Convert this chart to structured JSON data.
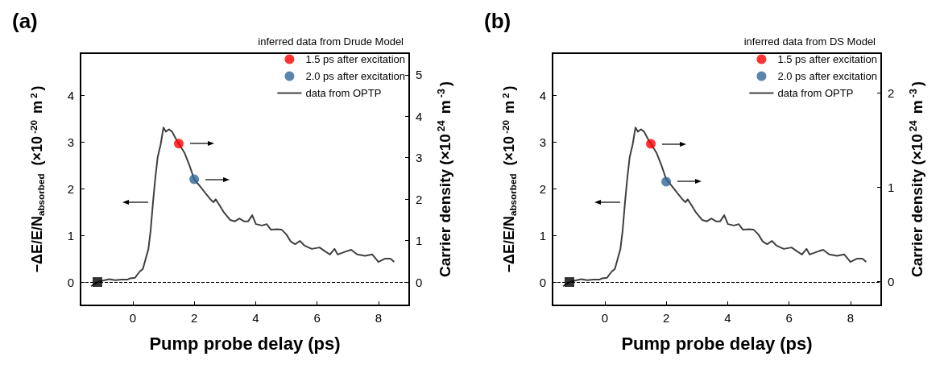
{
  "chart_data": [
    {
      "type": "line",
      "title": "(a)",
      "xlabel": "Pump probe delay (ps)",
      "ylabel": "−ΔE/E/N$_{absorbed}$  (×10$^{-20}$ m$^{2}$)",
      "y2label": "Carrier density (×10$^{24}$ m$^{-3}$)",
      "legend_title": "inferred data from Drude Model",
      "legend": "top right",
      "grid": false,
      "xlim": [
        -1.7,
        9
      ],
      "xticks": [
        0,
        2,
        4,
        6,
        8
      ],
      "ylim": [
        -0.5,
        4.9
      ],
      "yticks": [
        0,
        1,
        2,
        3,
        4
      ],
      "y2lim": [
        -0.56,
        5.52
      ],
      "y2ticks": [
        0,
        1,
        2,
        3,
        4,
        5
      ],
      "ref_lines": [
        {
          "axis": "y",
          "value": 0,
          "line_style": "dashed",
          "color": "#000000"
        }
      ],
      "series": [
        {
          "name": "1.5 ps after excitation",
          "type": "scatter",
          "axis": "y2",
          "marker": "circle",
          "color": "#ff0000",
          "x": [
            1.5
          ],
          "values": [
            3.34
          ]
        },
        {
          "name": "2.0 ps after excitation",
          "type": "scatter",
          "axis": "y2",
          "marker": "circle",
          "color": "#336699",
          "x": [
            2.0
          ],
          "values": [
            2.48
          ]
        },
        {
          "name": "data from OPTP",
          "marker": "none",
          "line_style": "solid",
          "color": "#404040",
          "x": [
            -1.36,
            -1.14,
            -0.97,
            -0.77,
            -0.57,
            -0.37,
            -0.18,
            -0.08,
            0.07,
            0.22,
            0.33,
            0.41,
            0.51,
            0.58,
            0.66,
            0.73,
            0.81,
            0.91,
            1.0,
            1.08,
            1.18,
            1.28,
            1.4,
            1.52,
            1.69,
            1.84,
            2.0,
            2.19,
            2.38,
            2.53,
            2.63,
            2.7,
            2.83,
            2.97,
            3.17,
            3.33,
            3.47,
            3.62,
            3.76,
            3.89,
            4.01,
            4.21,
            4.36,
            4.5,
            4.7,
            4.85,
            5.0,
            5.14,
            5.29,
            5.44,
            5.59,
            5.83,
            6.08,
            6.28,
            6.42,
            6.57,
            6.67,
            6.92,
            7.11,
            7.31,
            7.56,
            7.8,
            8.0,
            8.2,
            8.39,
            8.51
          ],
          "values": [
            -0.09,
            0,
            0.03,
            0.06,
            0.04,
            0.05,
            0.05,
            0.08,
            0.09,
            0.22,
            0.28,
            0.47,
            0.71,
            1.09,
            1.71,
            2.2,
            2.67,
            2.95,
            3.31,
            3.22,
            3.27,
            3.22,
            3.07,
            null,
            2.76,
            2.51,
            2.2,
            2.05,
            1.89,
            1.77,
            1.71,
            1.77,
            1.64,
            1.49,
            1.33,
            1.3,
            1.36,
            1.3,
            1.3,
            1.43,
            1.24,
            1.21,
            1.24,
            1.12,
            1.13,
            1.12,
            1.02,
            0.87,
            0.81,
            0.88,
            0.78,
            0.71,
            0.74,
            0.65,
            0.59,
            0.71,
            0.59,
            0.65,
            0.69,
            0.59,
            0.56,
            0.59,
            0.43,
            0.5,
            0.5,
            0.43
          ]
        },
        {
          "type": "scatter",
          "marker": "square",
          "color": "#000000",
          "x": [
            -1.15
          ],
          "values": [
            0
          ]
        }
      ]
    },
    {
      "type": "line",
      "title": "(b)",
      "xlabel": "Pump probe delay (ps)",
      "ylabel": "−ΔE/E/N$_{absorbed}$  (×10$^{-20}$ m$^{2}$)",
      "y2label": "Carrier density (×10$^{24}$ m$^{-3}$)",
      "legend_title": "inferred data from DS Model",
      "legend": "top right",
      "grid": false,
      "xlim": [
        -1.7,
        9
      ],
      "xticks": [
        0,
        2,
        4,
        6,
        8
      ],
      "ylim": [
        -0.5,
        4.9
      ],
      "yticks": [
        0,
        1,
        2,
        3,
        4
      ],
      "y2lim": [
        -0.25,
        2.42
      ],
      "y2ticks": [
        0,
        1,
        2
      ],
      "ref_lines": [
        {
          "axis": "y",
          "value": 0,
          "line_style": "dashed",
          "color": "#000000"
        }
      ],
      "series": [
        {
          "name": "1.5 ps after excitation",
          "type": "scatter",
          "axis": "y2",
          "marker": "circle",
          "color": "#ff0000",
          "x": [
            1.5
          ],
          "values": [
            1.46
          ]
        },
        {
          "name": "2.0 ps after excitation",
          "type": "scatter",
          "axis": "y2",
          "marker": "circle",
          "color": "#336699",
          "x": [
            2.0
          ],
          "values": [
            1.06
          ]
        },
        {
          "name": "data from OPTP",
          "marker": "none",
          "line_style": "solid",
          "color": "#404040",
          "x": [
            -1.36,
            -1.14,
            -0.97,
            -0.77,
            -0.57,
            -0.37,
            -0.18,
            -0.08,
            0.07,
            0.22,
            0.33,
            0.41,
            0.51,
            0.58,
            0.66,
            0.73,
            0.81,
            0.91,
            1.0,
            1.08,
            1.18,
            1.28,
            1.4,
            1.52,
            1.69,
            1.84,
            2.0,
            2.19,
            2.38,
            2.53,
            2.63,
            2.7,
            2.83,
            2.97,
            3.17,
            3.33,
            3.47,
            3.62,
            3.76,
            3.89,
            4.01,
            4.21,
            4.36,
            4.5,
            4.7,
            4.85,
            5.0,
            5.14,
            5.29,
            5.44,
            5.59,
            5.83,
            6.08,
            6.28,
            6.42,
            6.57,
            6.67,
            6.92,
            7.11,
            7.31,
            7.56,
            7.8,
            8.0,
            8.2,
            8.39,
            8.51
          ],
          "values": [
            -0.09,
            0,
            0.03,
            0.06,
            0.04,
            0.05,
            0.05,
            0.08,
            0.09,
            0.22,
            0.28,
            0.47,
            0.71,
            1.09,
            1.71,
            2.2,
            2.67,
            2.95,
            3.31,
            3.22,
            3.27,
            3.22,
            3.07,
            null,
            2.76,
            2.51,
            2.2,
            2.05,
            1.89,
            1.77,
            1.71,
            1.77,
            1.64,
            1.49,
            1.33,
            1.3,
            1.36,
            1.3,
            1.3,
            1.43,
            1.24,
            1.21,
            1.24,
            1.12,
            1.13,
            1.12,
            1.02,
            0.87,
            0.81,
            0.88,
            0.78,
            0.71,
            0.74,
            0.65,
            0.59,
            0.71,
            0.59,
            0.65,
            0.69,
            0.59,
            0.56,
            0.59,
            0.43,
            0.5,
            0.5,
            0.43
          ]
        },
        {
          "type": "scatter",
          "marker": "square",
          "color": "#000000",
          "x": [
            -1.15
          ],
          "values": [
            0
          ]
        }
      ]
    }
  ]
}
